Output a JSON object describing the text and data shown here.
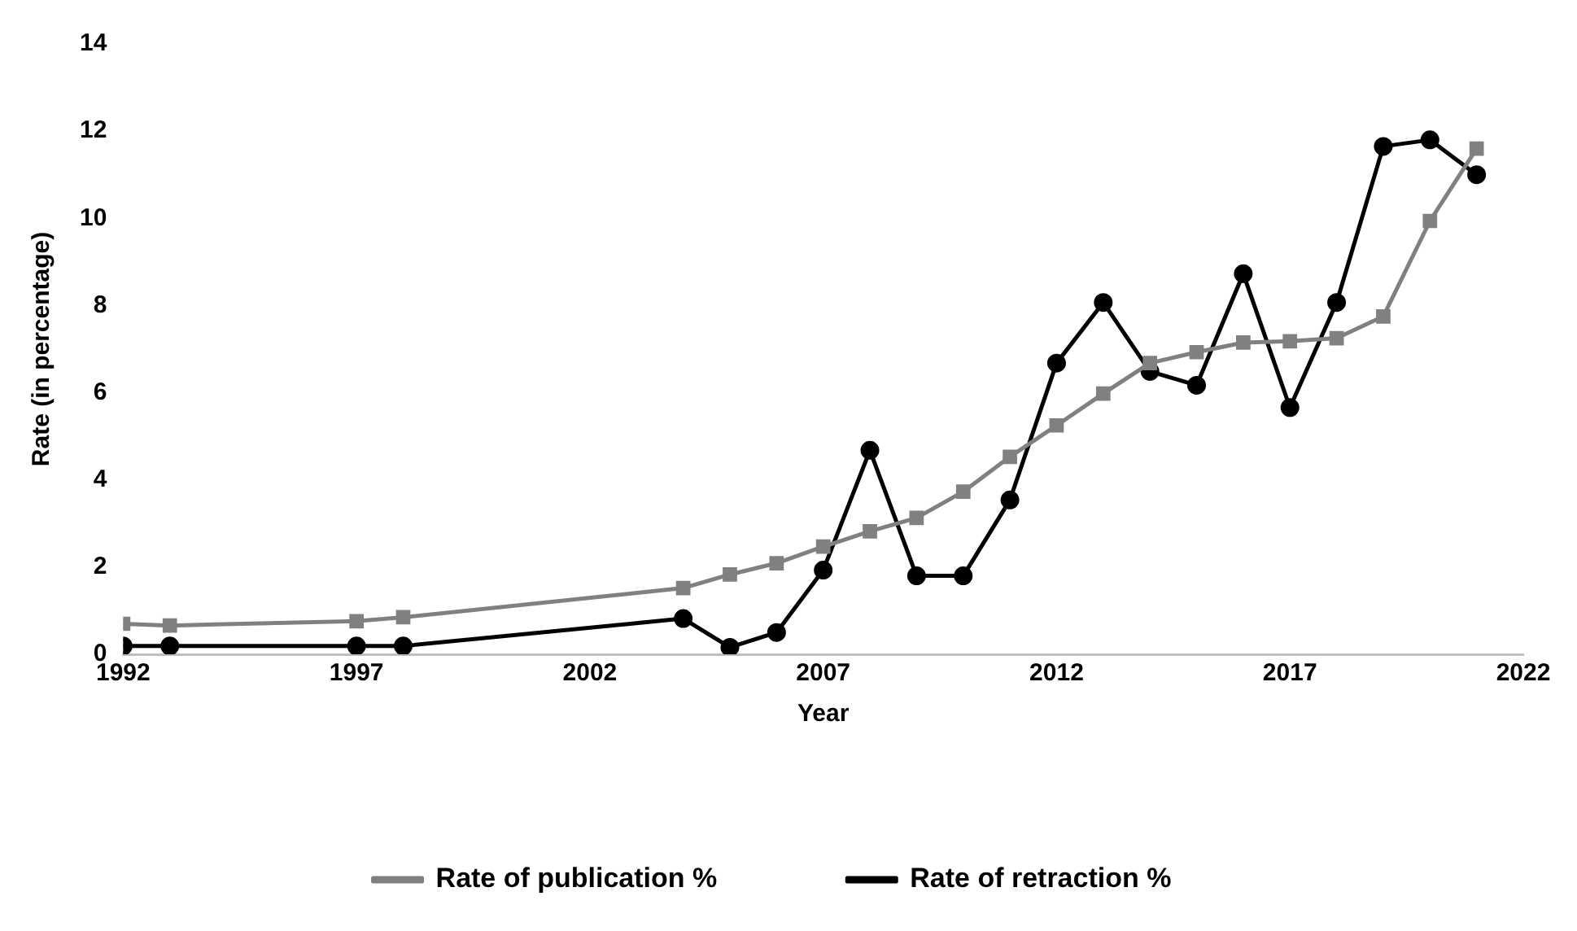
{
  "chart_data": {
    "type": "line",
    "xlabel": "Year",
    "ylabel": "Rate (in percentage)",
    "x": [
      1992,
      1993,
      1997,
      1998,
      2004,
      2005,
      2006,
      2007,
      2008,
      2009,
      2010,
      2011,
      2012,
      2013,
      2014,
      2015,
      2016,
      2017,
      2018,
      2019,
      2020,
      2021
    ],
    "series": [
      {
        "name": "Rate of publication %",
        "color": "#808080",
        "marker": "square",
        "values": [
          0.7,
          0.66,
          0.76,
          0.85,
          1.52,
          1.83,
          2.09,
          2.47,
          2.82,
          3.13,
          3.73,
          4.53,
          5.25,
          5.98,
          6.68,
          6.93,
          7.15,
          7.18,
          7.25,
          7.75,
          9.94,
          11.6
        ]
      },
      {
        "name": "Rate of retraction %",
        "color": "#000000",
        "marker": "circle",
        "values": [
          0.19,
          0.19,
          0.19,
          0.19,
          0.82,
          0.16,
          0.5,
          1.93,
          4.68,
          1.8,
          1.8,
          3.54,
          6.68,
          8.07,
          6.49,
          6.17,
          8.73,
          5.66,
          8.07,
          11.65,
          11.8,
          11.0
        ]
      }
    ],
    "xlim": [
      1992,
      2022
    ],
    "xticks": [
      1992,
      1997,
      2002,
      2007,
      2012,
      2017,
      2022
    ],
    "ylim": [
      0,
      14
    ],
    "yticks": [
      0,
      2,
      4,
      6,
      8,
      10,
      12,
      14
    ],
    "grid": false,
    "legend": "bottom",
    "line_style": "solid"
  }
}
